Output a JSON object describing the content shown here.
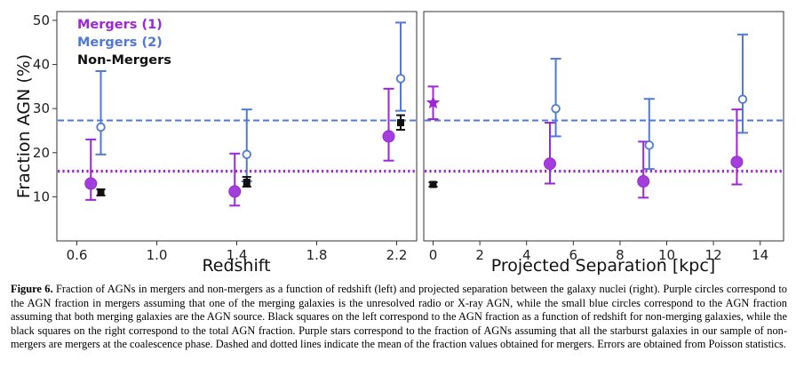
{
  "colors": {
    "mergers1": "#9b27d8",
    "mergers2": "#4f78d8",
    "nonmergers": "#111111"
  },
  "legend": [
    "Mergers (1)",
    "Mergers (2)",
    "Non-Mergers"
  ],
  "caption": {
    "label": "Figure 6.",
    "text": "Fraction of AGNs in mergers and non-mergers as a function of redshift (left) and projected separation between the galaxy nuclei (right). Purple circles correspond to the AGN fraction in mergers assuming that one of the merging galaxies is the unresolved radio or X-ray AGN, while the small blue circles correspond to the AGN fraction assuming that both merging galaxies are the AGN source. Black squares on the left correspond to the AGN fraction as a function of redshift for non-merging galaxies, while the black squares on the right correspond to the total AGN fraction. Purple stars correspond to the fraction of AGNs assuming that all the starburst galaxies in our sample of non-mergers are mergers at the coalescence phase. Dashed and dotted lines indicate the mean of the fraction values obtained for mergers. Errors are obtained from Poisson statistics."
  },
  "chart_data": [
    {
      "type": "scatter",
      "xlabel": "Redshift",
      "ylabel": "Fraction AGN (%)",
      "xlim": [
        0.5,
        2.3
      ],
      "ylim": [
        0,
        52
      ],
      "xticks": [
        "0.6",
        "1.0",
        "1.4",
        "1.8",
        "2.2"
      ],
      "yticks": [
        "10",
        "20",
        "30",
        "40",
        "50"
      ],
      "legend_position": "top-left",
      "grid": false,
      "hlines": [
        {
          "series": "Mergers (2)",
          "style": "dashed",
          "y": 27.3
        },
        {
          "series": "Mergers (1)",
          "style": "dotted",
          "y": 15.8
        }
      ],
      "series": [
        {
          "name": "Mergers (1)",
          "marker": "filled-circle",
          "points": [
            {
              "x": 0.67,
              "y": 13.0,
              "lo": 9.3,
              "hi": 23.0
            },
            {
              "x": 1.39,
              "y": 11.2,
              "lo": 8.0,
              "hi": 19.8
            },
            {
              "x": 2.16,
              "y": 23.7,
              "lo": 18.2,
              "hi": 34.5
            }
          ]
        },
        {
          "name": "Mergers (2)",
          "marker": "open-circle",
          "points": [
            {
              "x": 0.72,
              "y": 25.8,
              "lo": 19.6,
              "hi": 38.5
            },
            {
              "x": 1.45,
              "y": 19.6,
              "lo": 13.5,
              "hi": 29.8
            },
            {
              "x": 2.22,
              "y": 36.8,
              "lo": 29.5,
              "hi": 49.5
            }
          ]
        },
        {
          "name": "Non-Mergers",
          "marker": "square",
          "points": [
            {
              "x": 0.72,
              "y": 11.0,
              "lo": 10.3,
              "hi": 11.7
            },
            {
              "x": 1.45,
              "y": 13.3,
              "lo": 12.3,
              "hi": 14.5
            },
            {
              "x": 2.22,
              "y": 26.8,
              "lo": 25.2,
              "hi": 28.5
            }
          ]
        }
      ]
    },
    {
      "type": "scatter",
      "xlabel": "Projected Separation [kpc]",
      "ylabel": "",
      "xlim": [
        -0.4,
        15.0
      ],
      "ylim": [
        0,
        52
      ],
      "xticks": [
        "0",
        "2",
        "4",
        "6",
        "8",
        "10",
        "12",
        "14"
      ],
      "grid": false,
      "hlines": [
        {
          "series": "Mergers (2)",
          "style": "dashed",
          "y": 27.3
        },
        {
          "series": "Mergers (1)",
          "style": "dotted",
          "y": 15.8
        }
      ],
      "series": [
        {
          "name": "Mergers (1)",
          "marker": "filled-circle",
          "points": [
            {
              "x": 5.0,
              "y": 17.5,
              "lo": 13.0,
              "hi": 26.8
            },
            {
              "x": 9.0,
              "y": 13.5,
              "lo": 9.8,
              "hi": 22.5
            },
            {
              "x": 13.0,
              "y": 17.9,
              "lo": 12.8,
              "hi": 29.8
            }
          ]
        },
        {
          "name": "Mergers (2)",
          "marker": "open-circle",
          "points": [
            {
              "x": 5.25,
              "y": 30.0,
              "lo": 23.7,
              "hi": 41.3
            },
            {
              "x": 9.25,
              "y": 21.7,
              "lo": 16.3,
              "hi": 32.2
            },
            {
              "x": 13.25,
              "y": 32.1,
              "lo": 24.5,
              "hi": 46.8
            }
          ]
        },
        {
          "name": "Non-Mergers",
          "marker": "square",
          "points": [
            {
              "x": 0.0,
              "y": 12.8,
              "lo": 12.3,
              "hi": 13.3
            }
          ]
        },
        {
          "name": "Starburst coalescence",
          "marker": "star",
          "points": [
            {
              "x": 0.0,
              "y": 31.3,
              "lo": 27.6,
              "hi": 35.0
            }
          ]
        }
      ]
    }
  ]
}
